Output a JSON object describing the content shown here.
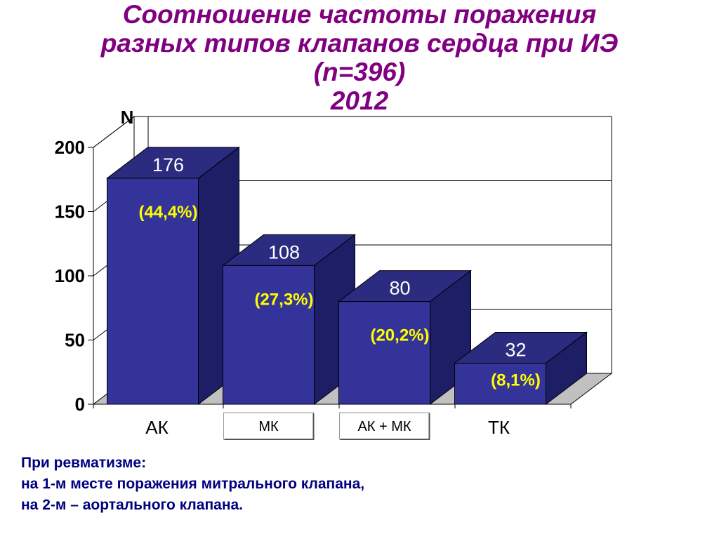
{
  "title": {
    "line1": "Соотношение частоты поражения",
    "line2": "разных типов клапанов сердца при ИЭ",
    "line3": "(n=396)",
    "line4": "2012"
  },
  "chart_data": {
    "type": "bar",
    "title": "",
    "ylabel": "N",
    "xlabel": "",
    "categories": [
      "АК",
      "МК",
      "АК + МК",
      "ТК"
    ],
    "values": [
      176,
      108,
      80,
      32
    ],
    "percent_labels": [
      "(44,4%)",
      "(27,3%)",
      "(20,2%)",
      "(8,1%)"
    ],
    "ylim": [
      0,
      200
    ],
    "yticks": [
      0,
      50,
      100,
      150,
      200
    ],
    "grid": true,
    "style_3d": true,
    "boxed_categories": [
      "МК",
      "АК + МК"
    ],
    "colors": {
      "bar_front": "#333399",
      "bar_side": "#1E1E66",
      "bar_top": "#2B2B80",
      "value_label": "#ffffff",
      "percent_label": "#ffff00",
      "floor": "#c0c0c0"
    }
  },
  "footnote": {
    "line1": "При ревматизме:",
    "line2": "на 1-м месте поражения митрального клапана,",
    "line3": "на 2-м – аортального клапана."
  }
}
